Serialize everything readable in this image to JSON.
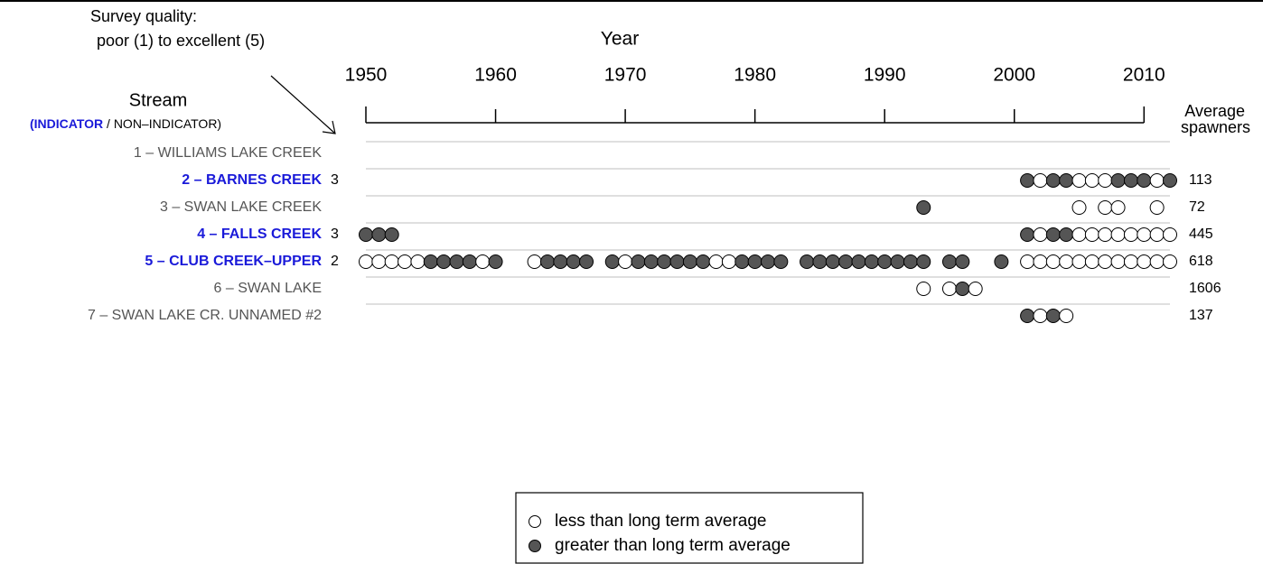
{
  "chart_data": {
    "type": "dot-timeline",
    "survey_quality": [
      "Survey quality:",
      "poor (1) to excellent (5)"
    ],
    "x_label": "Year",
    "stream_label": "Stream",
    "stream_sub": [
      "(INDICATOR",
      " / NON–INDICATOR)"
    ],
    "value_label": [
      "Average",
      "spawners"
    ],
    "xlim": [
      1950,
      2012
    ],
    "xticks": [
      1950,
      1960,
      1970,
      1980,
      1990,
      2000,
      2010
    ],
    "indicator_color": "#1a1ad9",
    "other_color": "#555555",
    "streams": [
      {
        "name": "1 – WILLIAMS LAKE CREEK",
        "indicator": false,
        "quality": null,
        "average": null,
        "years": [],
        "above": []
      },
      {
        "name": "2 – BARNES CREEK",
        "indicator": true,
        "quality": 3,
        "average": 113,
        "years": [
          2001,
          2002,
          2003,
          2004,
          2005,
          2006,
          2007,
          2008,
          2009,
          2010,
          2011,
          2012
        ],
        "above": [
          true,
          false,
          true,
          true,
          false,
          false,
          false,
          true,
          true,
          true,
          false,
          true
        ]
      },
      {
        "name": "3 – SWAN LAKE CREEK",
        "indicator": false,
        "quality": null,
        "average": 72,
        "years": [
          1993,
          2005,
          2007,
          2008,
          2011
        ],
        "above": [
          true,
          false,
          false,
          false,
          false
        ]
      },
      {
        "name": "4 – FALLS CREEK",
        "indicator": true,
        "quality": 3,
        "average": 445,
        "years": [
          1950,
          1951,
          1952,
          2001,
          2002,
          2003,
          2004,
          2005,
          2006,
          2007,
          2008,
          2009,
          2010,
          2011,
          2012
        ],
        "above": [
          true,
          true,
          true,
          true,
          false,
          true,
          true,
          false,
          false,
          false,
          false,
          false,
          false,
          false,
          false
        ]
      },
      {
        "name": "5 – CLUB CREEK–UPPER",
        "indicator": true,
        "quality": 2,
        "average": 618,
        "years": [
          1950,
          1951,
          1952,
          1953,
          1954,
          1955,
          1956,
          1957,
          1958,
          1959,
          1960,
          1963,
          1964,
          1965,
          1966,
          1967,
          1969,
          1970,
          1971,
          1972,
          1973,
          1974,
          1975,
          1976,
          1977,
          1978,
          1979,
          1980,
          1981,
          1982,
          1984,
          1985,
          1986,
          1987,
          1988,
          1989,
          1990,
          1991,
          1992,
          1993,
          1995,
          1996,
          1999,
          2001,
          2002,
          2003,
          2004,
          2005,
          2006,
          2007,
          2008,
          2009,
          2010,
          2011,
          2012
        ],
        "above": [
          false,
          false,
          false,
          false,
          false,
          true,
          true,
          true,
          true,
          false,
          true,
          false,
          true,
          true,
          true,
          true,
          true,
          false,
          true,
          true,
          true,
          true,
          true,
          true,
          false,
          false,
          true,
          true,
          true,
          true,
          true,
          true,
          true,
          true,
          true,
          true,
          true,
          true,
          true,
          true,
          true,
          true,
          true,
          false,
          false,
          false,
          false,
          false,
          false,
          false,
          false,
          false,
          false,
          false,
          false
        ]
      },
      {
        "name": "6 – SWAN LAKE",
        "indicator": false,
        "quality": null,
        "average": 1606,
        "years": [
          1993,
          1995,
          1996,
          1997
        ],
        "above": [
          false,
          false,
          true,
          false
        ]
      },
      {
        "name": "7 – SWAN LAKE CR. UNNAMED #2",
        "indicator": false,
        "quality": null,
        "average": 137,
        "years": [
          2001,
          2002,
          2003,
          2004
        ],
        "above": [
          true,
          false,
          true,
          false
        ]
      }
    ],
    "legend": [
      {
        "label": "less than long term average",
        "color": "#ffffff"
      },
      {
        "label": "greater than long term average",
        "color": "#555555"
      }
    ]
  }
}
